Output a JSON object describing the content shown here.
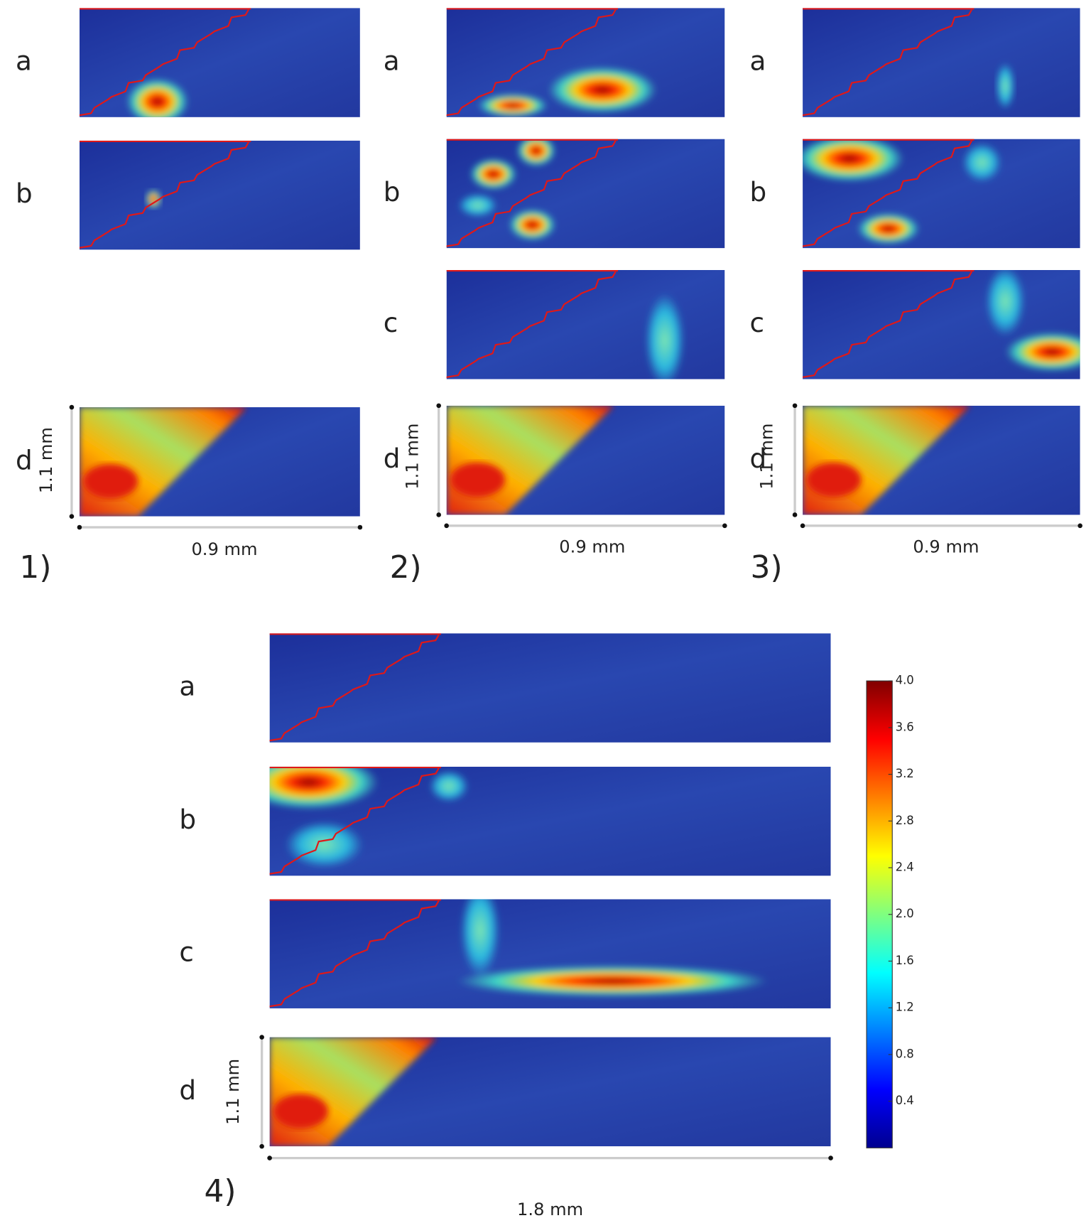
{
  "panels": [
    {
      "label": "1)",
      "rows": [
        "a",
        "b",
        "d"
      ],
      "width_label": "0.9 mm",
      "height_label": "1.1 mm"
    },
    {
      "label": "2)",
      "rows": [
        "a",
        "b",
        "c",
        "d"
      ],
      "width_label": "0.9 mm",
      "height_label": "1.1 mm"
    },
    {
      "label": "3)",
      "rows": [
        "a",
        "b",
        "c",
        "d"
      ],
      "width_label": "0.9 mm",
      "height_label": "1.1 mm"
    },
    {
      "label": "4)",
      "rows": [
        "a",
        "b",
        "c",
        "d"
      ],
      "width_label": "1.8 mm",
      "height_label": "1.1 mm"
    }
  ],
  "colorbar": {
    "ylim": [
      0,
      4.0
    ],
    "yticks": [
      0.4,
      0.8,
      1.2,
      1.6,
      {
        "value": 2,
        "label": "2.0"
      },
      2.4,
      2.8,
      3.2,
      3.6,
      {
        "value": 4,
        "label": "4.0"
      }
    ]
  }
}
